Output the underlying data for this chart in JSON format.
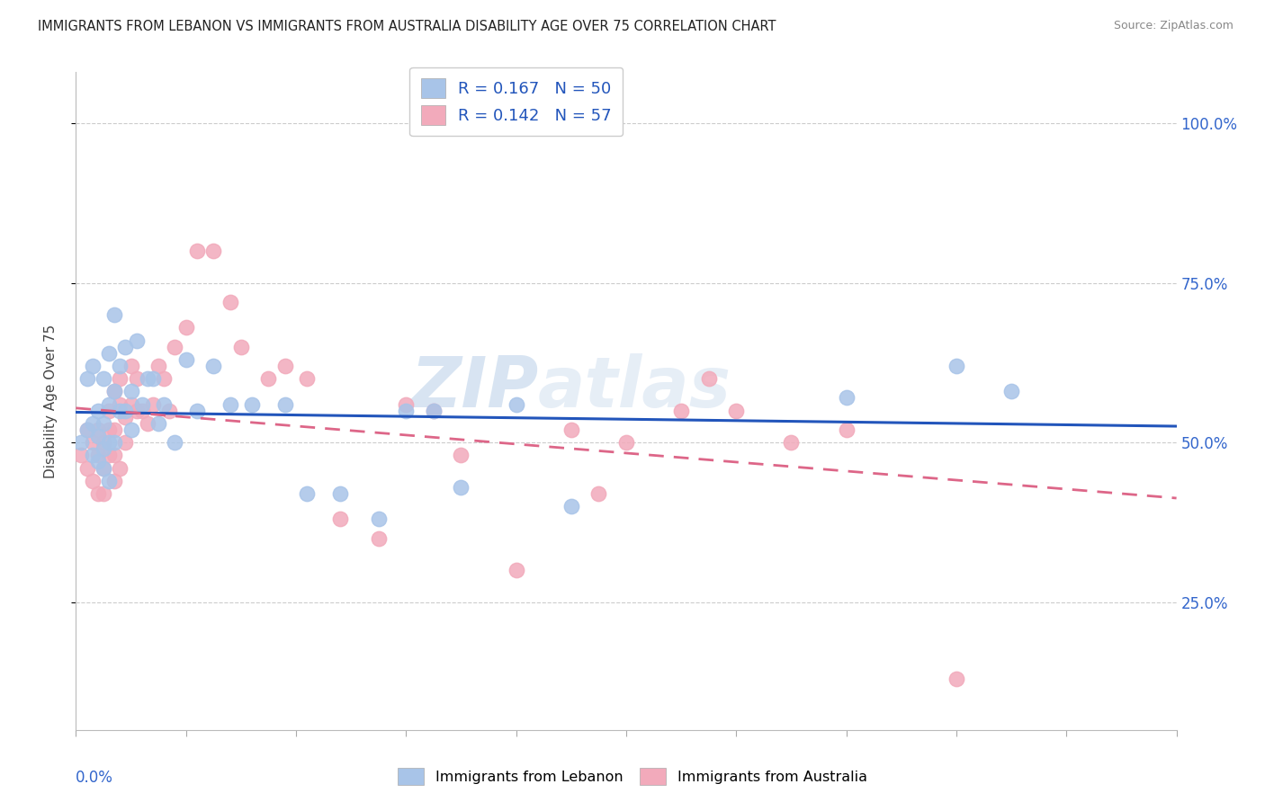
{
  "title": "IMMIGRANTS FROM LEBANON VS IMMIGRANTS FROM AUSTRALIA DISABILITY AGE OVER 75 CORRELATION CHART",
  "source": "Source: ZipAtlas.com",
  "ylabel": "Disability Age Over 75",
  "ylabel_ticks": [
    "25.0%",
    "50.0%",
    "75.0%",
    "100.0%"
  ],
  "ylabel_tick_vals": [
    0.25,
    0.5,
    0.75,
    1.0
  ],
  "xmin": 0.0,
  "xmax": 0.2,
  "ymin": 0.05,
  "ymax": 1.08,
  "legend_r1": "R = 0.167",
  "legend_n1": "N = 50",
  "legend_r2": "R = 0.142",
  "legend_n2": "N = 57",
  "watermark_top": "ZIP",
  "watermark_bot": "atlas",
  "blue_color": "#a8c4e8",
  "pink_color": "#f2aabb",
  "blue_line_color": "#2255bb",
  "pink_line_color": "#dd6688",
  "title_color": "#222222",
  "source_color": "#888888",
  "tick_label_color": "#3366cc",
  "axis_label_color": "#444444",
  "background_color": "#ffffff",
  "grid_color": "#cccccc",
  "blue_x": [
    0.001,
    0.002,
    0.002,
    0.003,
    0.003,
    0.003,
    0.004,
    0.004,
    0.004,
    0.005,
    0.005,
    0.005,
    0.005,
    0.006,
    0.006,
    0.006,
    0.006,
    0.007,
    0.007,
    0.007,
    0.008,
    0.008,
    0.009,
    0.009,
    0.01,
    0.01,
    0.011,
    0.012,
    0.013,
    0.014,
    0.015,
    0.016,
    0.018,
    0.02,
    0.022,
    0.025,
    0.028,
    0.032,
    0.038,
    0.042,
    0.048,
    0.055,
    0.06,
    0.065,
    0.07,
    0.08,
    0.09,
    0.14,
    0.16,
    0.17
  ],
  "blue_y": [
    0.5,
    0.52,
    0.6,
    0.48,
    0.53,
    0.62,
    0.51,
    0.55,
    0.47,
    0.49,
    0.53,
    0.46,
    0.6,
    0.5,
    0.44,
    0.64,
    0.56,
    0.58,
    0.5,
    0.7,
    0.62,
    0.55,
    0.55,
    0.65,
    0.58,
    0.52,
    0.66,
    0.56,
    0.6,
    0.6,
    0.53,
    0.56,
    0.5,
    0.63,
    0.55,
    0.62,
    0.56,
    0.56,
    0.56,
    0.42,
    0.42,
    0.38,
    0.55,
    0.55,
    0.43,
    0.56,
    0.4,
    0.57,
    0.62,
    0.58
  ],
  "pink_x": [
    0.001,
    0.002,
    0.002,
    0.003,
    0.003,
    0.004,
    0.004,
    0.004,
    0.005,
    0.005,
    0.005,
    0.006,
    0.006,
    0.006,
    0.007,
    0.007,
    0.007,
    0.007,
    0.008,
    0.008,
    0.008,
    0.009,
    0.009,
    0.01,
    0.01,
    0.011,
    0.011,
    0.012,
    0.013,
    0.014,
    0.015,
    0.016,
    0.017,
    0.018,
    0.02,
    0.022,
    0.025,
    0.028,
    0.03,
    0.035,
    0.038,
    0.042,
    0.048,
    0.055,
    0.06,
    0.065,
    0.07,
    0.08,
    0.09,
    0.095,
    0.1,
    0.11,
    0.115,
    0.12,
    0.13,
    0.14,
    0.16
  ],
  "pink_y": [
    0.48,
    0.46,
    0.52,
    0.5,
    0.44,
    0.48,
    0.52,
    0.42,
    0.5,
    0.46,
    0.42,
    0.55,
    0.52,
    0.48,
    0.58,
    0.44,
    0.52,
    0.48,
    0.6,
    0.56,
    0.46,
    0.54,
    0.5,
    0.62,
    0.56,
    0.55,
    0.6,
    0.55,
    0.53,
    0.56,
    0.62,
    0.6,
    0.55,
    0.65,
    0.68,
    0.8,
    0.8,
    0.72,
    0.65,
    0.6,
    0.62,
    0.6,
    0.38,
    0.35,
    0.56,
    0.55,
    0.48,
    0.3,
    0.52,
    0.42,
    0.5,
    0.55,
    0.6,
    0.55,
    0.5,
    0.52,
    0.13
  ],
  "title_fontsize": 10.5,
  "legend_fontsize": 13
}
